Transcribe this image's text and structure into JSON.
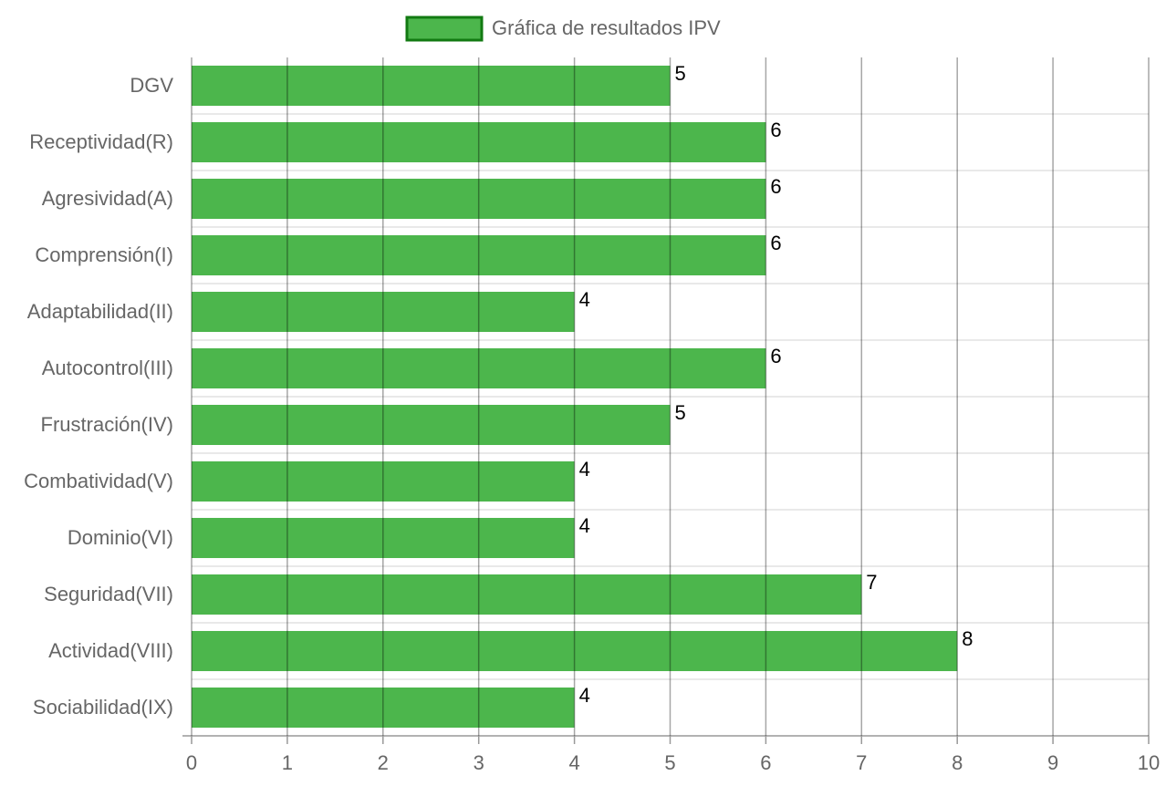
{
  "chart_data": {
    "type": "bar",
    "orientation": "horizontal",
    "legend": "top",
    "grid": true,
    "categories": [
      "DGV",
      "Receptividad(R)",
      "Agresividad(A)",
      "Comprensión(I)",
      "Adaptabilidad(II)",
      "Autocontrol(III)",
      "Frustración(IV)",
      "Combatividad(V)",
      "Dominio(VI)",
      "Seguridad(VII)",
      "Actividad(VIII)",
      "Sociabilidad(IX)"
    ],
    "series": [
      {
        "name": "Gráfica de resultados IPV",
        "color": "#4cb64c",
        "border_color": "#127a12",
        "values": [
          5,
          6,
          6,
          6,
          4,
          6,
          5,
          4,
          4,
          7,
          8,
          4
        ]
      }
    ],
    "xlim": [
      0,
      10
    ],
    "xticks": [
      0,
      1,
      2,
      3,
      4,
      5,
      6,
      7,
      8,
      9,
      10
    ]
  }
}
